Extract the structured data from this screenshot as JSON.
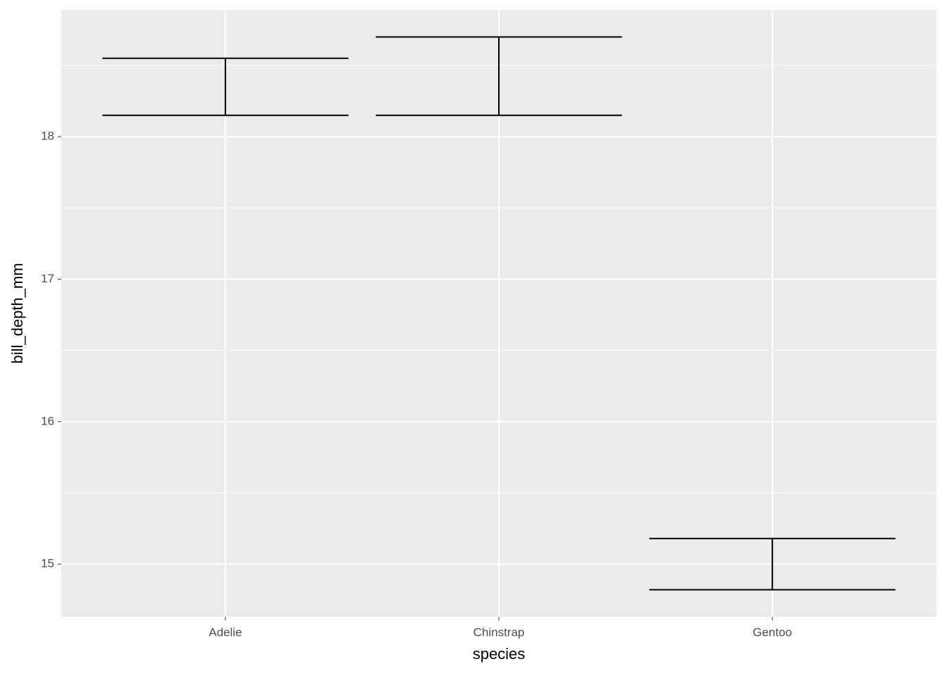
{
  "chart_data": {
    "type": "errorbar",
    "x_label": "species",
    "y_label": "bill_depth_mm",
    "categories": [
      "Adelie",
      "Chinstrap",
      "Gentoo"
    ],
    "ymin": [
      18.15,
      18.15,
      14.82
    ],
    "ymax": [
      18.55,
      18.7,
      15.18
    ],
    "color": "#000000",
    "ylim": [
      14.63,
      18.89
    ],
    "yticks": [
      15,
      16,
      17,
      18
    ],
    "minor_yticks": [
      15.5,
      16.5,
      17.5,
      18.5
    ],
    "grid": true
  }
}
